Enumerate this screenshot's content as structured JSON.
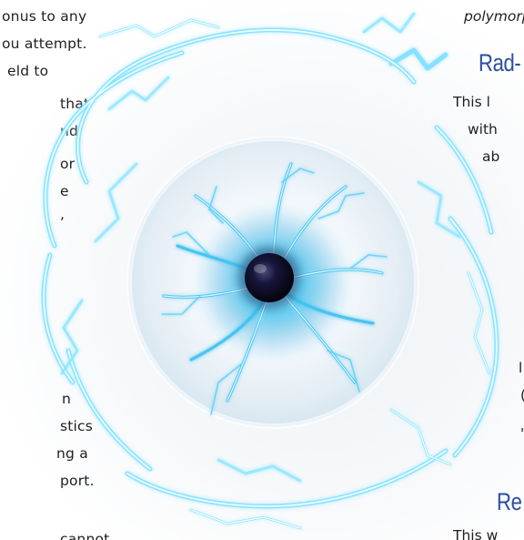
{
  "left_column": {
    "lines": [
      "onus to any",
      "ou  attempt.",
      "eld  to",
      "that",
      "nd",
      "or",
      "e",
      ",",
      "n",
      "stics",
      "ng  a",
      "port.",
      "cannot"
    ]
  },
  "right_column": {
    "top_italic": "polymorp",
    "heading_1": "Rad-",
    "lines_1": [
      "This l",
      "with",
      "ab"
    ],
    "fragment_1": "l",
    "fragment_2": "(",
    "fragment_3": "'",
    "heading_2": "Re",
    "bottom_line": "This w"
  },
  "colors": {
    "heading": "#2b4fa0",
    "lightning": "#7fe0ff",
    "lightning_core": "#eaffff",
    "orb_core": "#0c0a1e"
  },
  "art": {
    "subject": "glowing lightning orb with dark pupil inside a swirling electric vortex"
  }
}
